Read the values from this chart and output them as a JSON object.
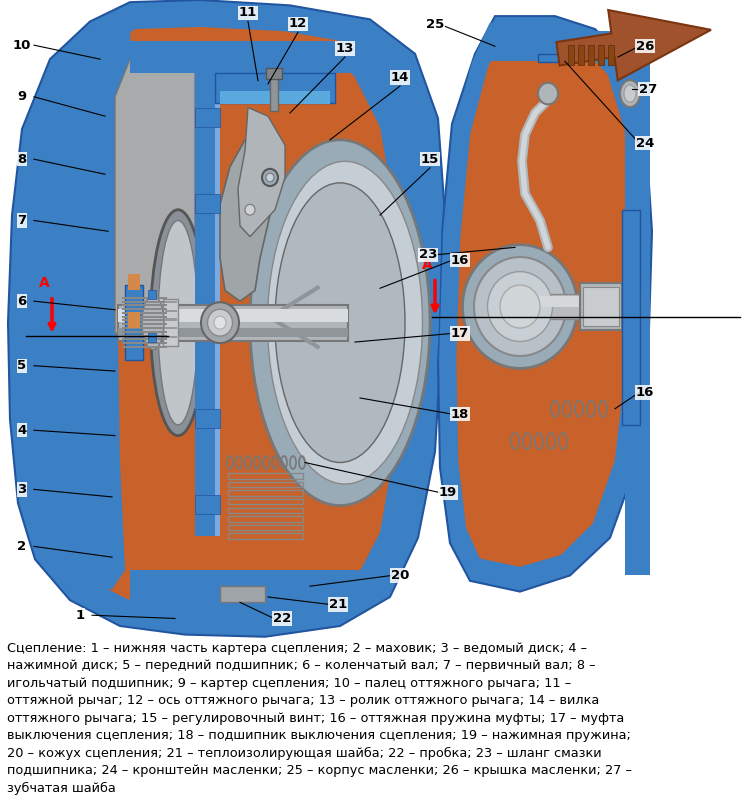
{
  "background_color": "#ffffff",
  "fig_width": 7.47,
  "fig_height": 7.95,
  "dpi": 100,
  "orange_fill": "#C8622A",
  "blue_frame": "#3B7FC4",
  "gray_metal": "#B8B8B8",
  "gray_light": "#D5D5D5",
  "gray_dark": "#888888",
  "caption_text": "Сцепление: 1 – нижняя часть картера сцепления; 2 – маховик; 3 – ведомый диск; 4 –\nнажимной диск; 5 – передний подшипник; 6 – коленчатый вал; 7 – первичный вал; 8 –\nигольчатый подшипник; 9 – картер сцепления; 10 – палец оттяжного рычага; 11 –\nоттяжной рычаг; 12 – ось оттяжного рычага; 13 – ролик оттяжного рычага; 14 – вилка\nоттяжного рычага; 15 – регулировочный винт; 16 – оттяжная пружина муфты; 17 – муфта\nвыключения сцепления; 18 – подшипник выключения сцепления; 19 – нажимная пружина;\n20 – кожух сцепления; 21 – теплоизолирующая шайба; 22 – пробка; 23 – шланг смазки\nподшипника; 24 – кронштейн масленки; 25 – корпус масленки; 26 – крышка масленки; 27 –\nзубчатая шайба",
  "caption_fontsize": 9.3
}
